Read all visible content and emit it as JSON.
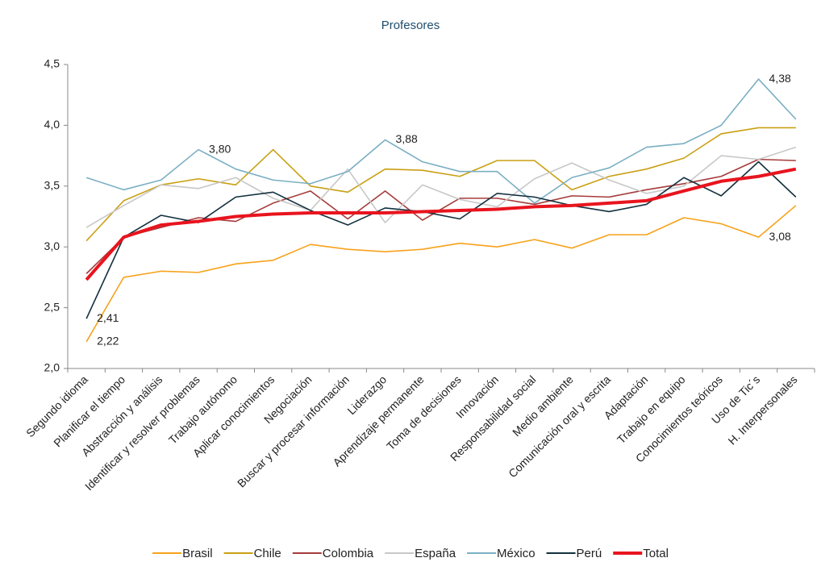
{
  "chart_data": {
    "type": "line",
    "title": "Profesores",
    "categories": [
      "Segundo idioma",
      "Planificar el tiempo",
      "Abstracción y análisis",
      "Identificar y resolver problemas",
      "Trabajo autónomo",
      "Aplicar conocimientos",
      "Negociación",
      "Buscar y procesar información",
      "Liderazgo",
      "Aprendizaje permanente",
      "Toma de decisiones",
      "Innovación",
      "Responsabilidad social",
      "Medio ambiente",
      "Comunicación oral y escrita",
      "Adaptación",
      "Trabajo en equipo",
      "Conocimientos teóricos",
      "Uso de Tic´s",
      "H. Interpersonales"
    ],
    "series": [
      {
        "name": "Brasil",
        "color": "#f7a21b",
        "values": [
          2.22,
          2.75,
          2.8,
          2.79,
          2.86,
          2.89,
          3.02,
          2.98,
          2.96,
          2.98,
          3.03,
          3.0,
          3.06,
          2.99,
          3.1,
          3.1,
          3.24,
          3.19,
          3.08,
          3.34
        ],
        "value_labels": [
          "2,22",
          null,
          null,
          null,
          null,
          null,
          null,
          null,
          null,
          null,
          null,
          null,
          null,
          null,
          null,
          null,
          null,
          null,
          "3,08",
          null
        ]
      },
      {
        "name": "Chile",
        "color": "#c9a013",
        "values": [
          3.05,
          3.38,
          3.51,
          3.56,
          3.51,
          3.8,
          3.5,
          3.45,
          3.64,
          3.63,
          3.58,
          3.71,
          3.71,
          3.47,
          3.58,
          3.64,
          3.73,
          3.93,
          3.98,
          3.98
        ]
      },
      {
        "name": "Colombia",
        "color": "#a63b3b",
        "values": [
          2.78,
          3.08,
          3.16,
          3.24,
          3.21,
          3.36,
          3.46,
          3.23,
          3.46,
          3.22,
          3.4,
          3.4,
          3.35,
          3.42,
          3.41,
          3.47,
          3.52,
          3.58,
          3.72,
          3.71
        ]
      },
      {
        "name": "España",
        "color": "#c8c8c8",
        "values": [
          3.16,
          3.34,
          3.51,
          3.48,
          3.57,
          3.4,
          3.3,
          3.64,
          3.2,
          3.51,
          3.39,
          3.33,
          3.56,
          3.69,
          3.55,
          3.44,
          3.5,
          3.75,
          3.72,
          3.82
        ]
      },
      {
        "name": "México",
        "color": "#7aafc3",
        "values": [
          3.57,
          3.47,
          3.55,
          3.8,
          3.64,
          3.55,
          3.52,
          3.62,
          3.88,
          3.7,
          3.62,
          3.62,
          3.36,
          3.57,
          3.65,
          3.82,
          3.85,
          4.0,
          4.38,
          4.05
        ],
        "value_labels": [
          null,
          null,
          null,
          "3,80",
          null,
          null,
          null,
          null,
          "3,88",
          null,
          null,
          null,
          null,
          null,
          null,
          null,
          null,
          null,
          "4,38",
          null
        ]
      },
      {
        "name": "Perú",
        "color": "#13303e",
        "values": [
          2.41,
          3.08,
          3.26,
          3.2,
          3.41,
          3.45,
          3.3,
          3.18,
          3.32,
          3.29,
          3.23,
          3.44,
          3.41,
          3.34,
          3.29,
          3.35,
          3.57,
          3.42,
          3.7,
          3.41
        ],
        "value_labels": [
          "2,41",
          null,
          null,
          null,
          null,
          null,
          null,
          null,
          null,
          null,
          null,
          null,
          null,
          null,
          null,
          null,
          null,
          null,
          null,
          null
        ]
      },
      {
        "name": "Total",
        "color": "#e8141e",
        "width": 4,
        "values": [
          2.73,
          3.08,
          3.18,
          3.21,
          3.25,
          3.27,
          3.28,
          3.28,
          3.28,
          3.29,
          3.3,
          3.31,
          3.33,
          3.34,
          3.36,
          3.38,
          3.46,
          3.54,
          3.58,
          3.64
        ]
      }
    ],
    "ylim": [
      2.0,
      4.5
    ],
    "yticks": [
      {
        "value": 2.0,
        "label": "2,0"
      },
      {
        "value": 2.5,
        "label": "2,5"
      },
      {
        "value": 3.0,
        "label": "3,0"
      },
      {
        "value": 3.5,
        "label": "3,5"
      },
      {
        "value": 4.0,
        "label": "4,0"
      },
      {
        "value": 4.5,
        "label": "4,5"
      }
    ],
    "legend": "bottom"
  }
}
